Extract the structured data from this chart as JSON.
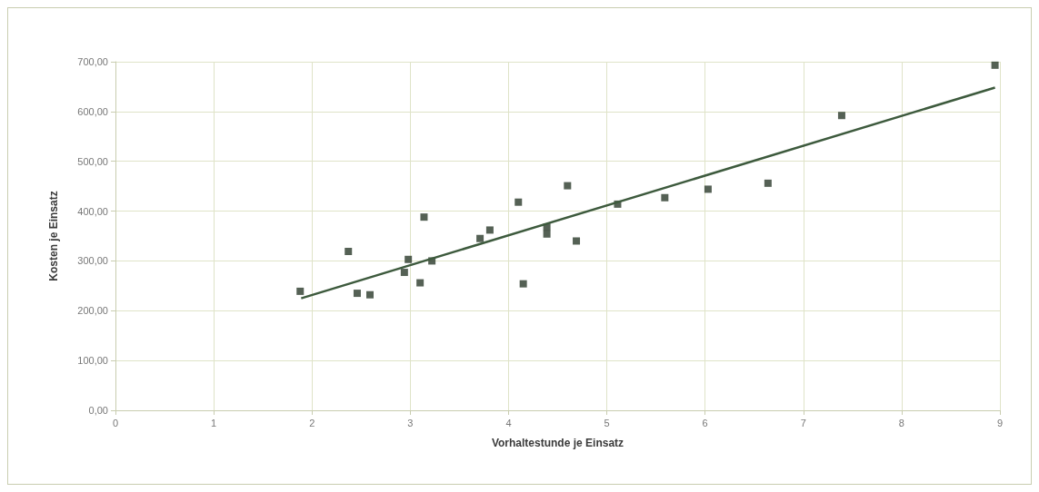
{
  "chart_data": {
    "type": "scatter",
    "xlabel": "Vorhaltestunde je Einsatz",
    "ylabel": "Kosten je Einsatz",
    "xlim": [
      0,
      9
    ],
    "xticks": [
      0,
      1,
      2,
      3,
      4,
      5,
      6,
      7,
      8,
      9
    ],
    "ylim": [
      0,
      700
    ],
    "yticks": [
      {
        "value": 0,
        "label": "0,00"
      },
      {
        "value": 100,
        "label": "100,00"
      },
      {
        "value": 200,
        "label": "200,00"
      },
      {
        "value": 300,
        "label": "300,00"
      },
      {
        "value": 400,
        "label": "400,00"
      },
      {
        "value": 500,
        "label": "500,00"
      },
      {
        "value": 600,
        "label": "600,00"
      },
      {
        "value": 700,
        "label": "700,00"
      }
    ],
    "grid": true,
    "marker": "square",
    "series": [
      {
        "color": "#2b3a2b",
        "x": [
          1.88,
          2.37,
          2.46,
          2.59,
          2.94,
          2.98,
          3.1,
          3.14,
          3.22,
          3.71,
          3.81,
          4.1,
          4.15,
          4.39,
          4.39,
          4.6,
          4.69,
          5.08,
          5.11,
          5.59,
          6.03,
          6.64,
          7.39,
          8.95
        ],
        "values": [
          239,
          319,
          235,
          232,
          277,
          303,
          256,
          388,
          300,
          345,
          362,
          418,
          254,
          368,
          354,
          451,
          340,
          null,
          414,
          427,
          444,
          456,
          592,
          693
        ]
      },
      {
        "type": "line",
        "color": "#3d5a3d",
        "marker": "none",
        "line_style": "solid",
        "x": [
          1.89,
          8.95
        ],
        "values": [
          225,
          648
        ]
      }
    ]
  }
}
